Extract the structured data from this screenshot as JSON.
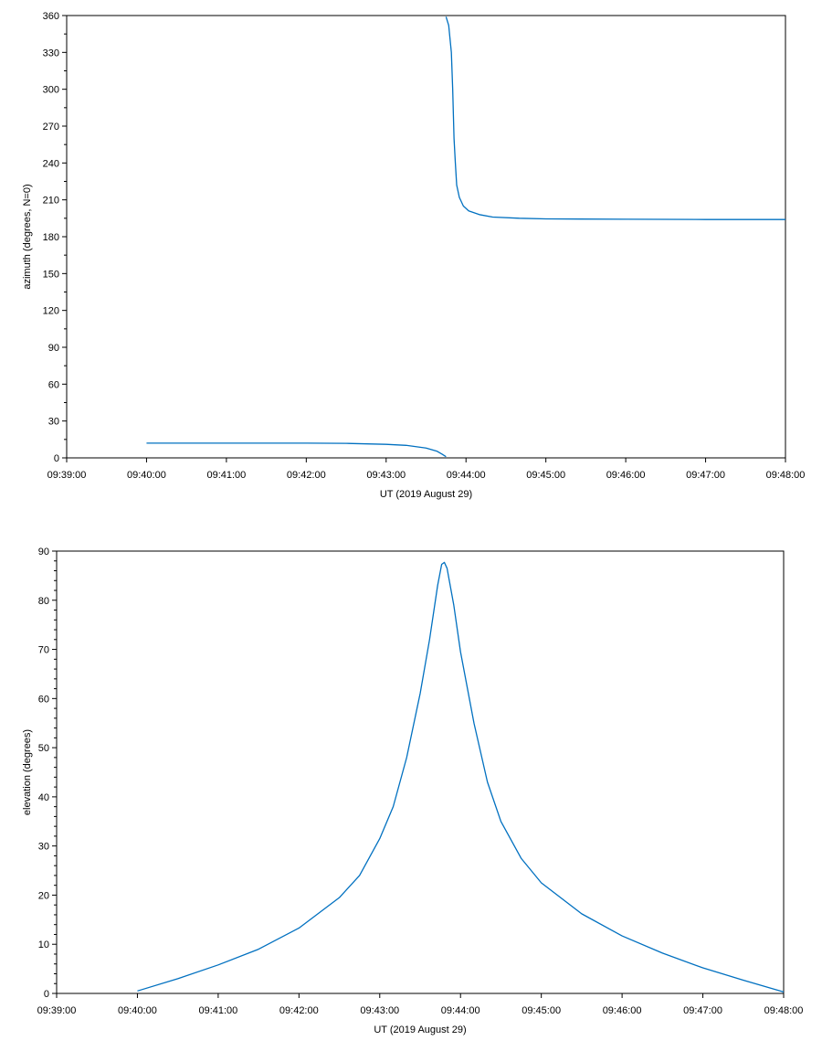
{
  "line_color": "#0070C0",
  "chart_data": [
    {
      "type": "line",
      "xlabel": "UT (2019 August 29)",
      "ylabel": "azimuth (degrees, N=0)",
      "xlim": [
        "09:39:00",
        "09:48:00"
      ],
      "ylim": [
        0,
        360
      ],
      "xticks": [
        "09:39:00",
        "09:40:00",
        "09:41:00",
        "09:42:00",
        "09:43:00",
        "09:44:00",
        "09:45:00",
        "09:46:00",
        "09:47:00",
        "09:48:00"
      ],
      "yticks": [
        "0",
        "30",
        "60",
        "90",
        "120",
        "150",
        "180",
        "210",
        "240",
        "270",
        "300",
        "330",
        "360"
      ],
      "grid": false,
      "series": [
        {
          "segments": [
            [
              {
                "x": "09:40:00",
                "y": 12
              },
              {
                "x": "09:41:00",
                "y": 12
              },
              {
                "x": "09:42:00",
                "y": 12
              },
              {
                "x": "09:42:30",
                "y": 11.8
              },
              {
                "x": "09:43:00",
                "y": 11
              },
              {
                "x": "09:43:15",
                "y": 10.2
              },
              {
                "x": "09:43:30",
                "y": 8
              },
              {
                "x": "09:43:38",
                "y": 5.5
              },
              {
                "x": "09:43:42",
                "y": 3
              },
              {
                "x": "09:43:45",
                "y": 1
              }
            ],
            [
              {
                "x": "09:43:45",
                "y": 359
              },
              {
                "x": "09:43:47",
                "y": 352
              },
              {
                "x": "09:43:49",
                "y": 330
              },
              {
                "x": "09:43:50",
                "y": 300
              },
              {
                "x": "09:43:51",
                "y": 260
              },
              {
                "x": "09:43:52",
                "y": 240
              },
              {
                "x": "09:43:53",
                "y": 222
              },
              {
                "x": "09:43:55",
                "y": 212
              },
              {
                "x": "09:43:58",
                "y": 205
              },
              {
                "x": "09:44:02",
                "y": 201
              },
              {
                "x": "09:44:10",
                "y": 198
              },
              {
                "x": "09:44:20",
                "y": 196
              },
              {
                "x": "09:44:40",
                "y": 195
              },
              {
                "x": "09:45:00",
                "y": 194.5
              },
              {
                "x": "09:46:00",
                "y": 194.2
              },
              {
                "x": "09:47:00",
                "y": 194
              },
              {
                "x": "09:48:00",
                "y": 194
              }
            ]
          ]
        }
      ]
    },
    {
      "type": "line",
      "xlabel": "UT (2019 August 29)",
      "ylabel": "elevation (degrees)",
      "xlim": [
        "09:39:00",
        "09:48:00"
      ],
      "ylim": [
        0,
        90
      ],
      "xticks": [
        "09:39:00",
        "09:40:00",
        "09:41:00",
        "09:42:00",
        "09:43:00",
        "09:44:00",
        "09:45:00",
        "09:46:00",
        "09:47:00",
        "09:48:00"
      ],
      "yticks": [
        "0",
        "10",
        "20",
        "30",
        "40",
        "50",
        "60",
        "70",
        "80",
        "90"
      ],
      "grid": false,
      "series": [
        {
          "segments": [
            [
              {
                "x": "09:40:00",
                "y": 0.5
              },
              {
                "x": "09:40:30",
                "y": 3
              },
              {
                "x": "09:41:00",
                "y": 5.8
              },
              {
                "x": "09:41:30",
                "y": 9
              },
              {
                "x": "09:42:00",
                "y": 13.3
              },
              {
                "x": "09:42:30",
                "y": 19.5
              },
              {
                "x": "09:42:45",
                "y": 24
              },
              {
                "x": "09:43:00",
                "y": 31.5
              },
              {
                "x": "09:43:10",
                "y": 38
              },
              {
                "x": "09:43:20",
                "y": 48
              },
              {
                "x": "09:43:30",
                "y": 61
              },
              {
                "x": "09:43:37",
                "y": 72
              },
              {
                "x": "09:43:43",
                "y": 83
              },
              {
                "x": "09:43:46",
                "y": 87.3
              },
              {
                "x": "09:43:48",
                "y": 87.7
              },
              {
                "x": "09:43:50",
                "y": 86.5
              },
              {
                "x": "09:43:55",
                "y": 79
              },
              {
                "x": "09:44:00",
                "y": 69.5
              },
              {
                "x": "09:44:10",
                "y": 55
              },
              {
                "x": "09:44:20",
                "y": 43
              },
              {
                "x": "09:44:30",
                "y": 35
              },
              {
                "x": "09:44:45",
                "y": 27.5
              },
              {
                "x": "09:45:00",
                "y": 22.5
              },
              {
                "x": "09:45:30",
                "y": 16.2
              },
              {
                "x": "09:46:00",
                "y": 11.7
              },
              {
                "x": "09:46:30",
                "y": 8.2
              },
              {
                "x": "09:47:00",
                "y": 5.2
              },
              {
                "x": "09:47:30",
                "y": 2.7
              },
              {
                "x": "09:48:00",
                "y": 0.3
              }
            ]
          ]
        }
      ]
    }
  ]
}
